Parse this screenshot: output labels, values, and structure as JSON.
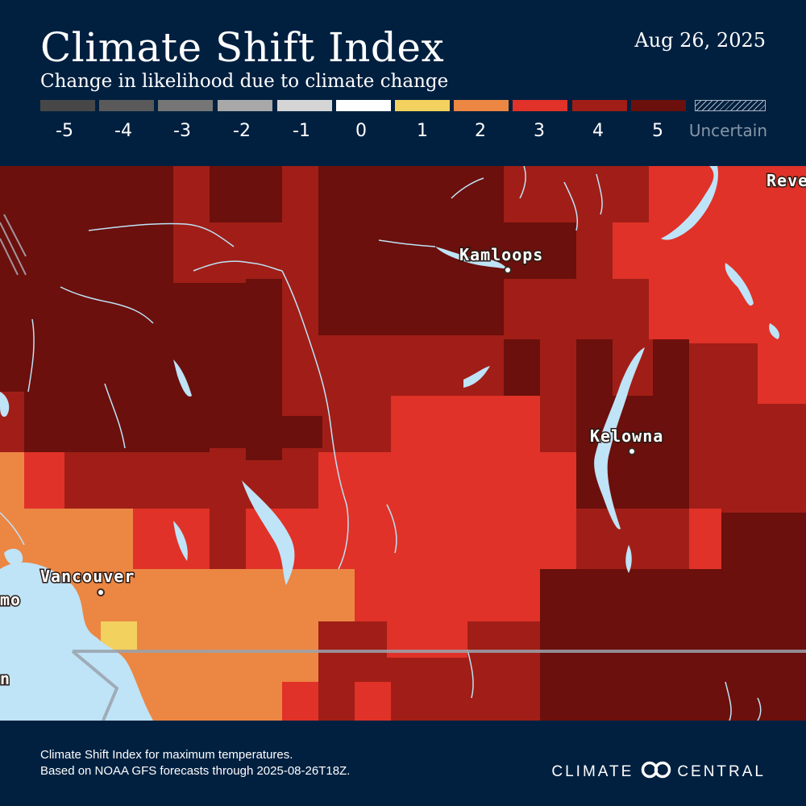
{
  "header": {
    "title": "Climate Shift Index",
    "subtitle": "Change in likelihood due to climate change",
    "date": "Aug 26, 2025"
  },
  "legend": {
    "items": [
      {
        "label": "-5",
        "color": "#474747"
      },
      {
        "label": "-4",
        "color": "#5a5a5a"
      },
      {
        "label": "-3",
        "color": "#767676"
      },
      {
        "label": "-2",
        "color": "#a8a8a8"
      },
      {
        "label": "-1",
        "color": "#d5d5d5"
      },
      {
        "label": "0",
        "color": "#ffffff"
      },
      {
        "label": "1",
        "color": "#f3d15e"
      },
      {
        "label": "2",
        "color": "#ec8643"
      },
      {
        "label": "3",
        "color": "#e03228"
      },
      {
        "label": "4",
        "color": "#a01e17"
      },
      {
        "label": "5",
        "color": "#6b100c"
      }
    ],
    "uncertain_label": "Uncertain"
  },
  "map": {
    "cities": [
      {
        "name": "Kamloops"
      },
      {
        "name": "Kelowna"
      },
      {
        "name": "Vancouver"
      },
      {
        "name": "Reve"
      },
      {
        "name": "mo"
      },
      {
        "name": "n"
      }
    ],
    "water_color": "#bfe3f7"
  },
  "footer": {
    "note_line1": "Climate Shift Index for maximum temperatures.",
    "note_line2": "Based on NOAA GFS forecasts through 2025-08-26T18Z.",
    "brand_left": "CLIMATE",
    "brand_right": "CENTRAL"
  }
}
